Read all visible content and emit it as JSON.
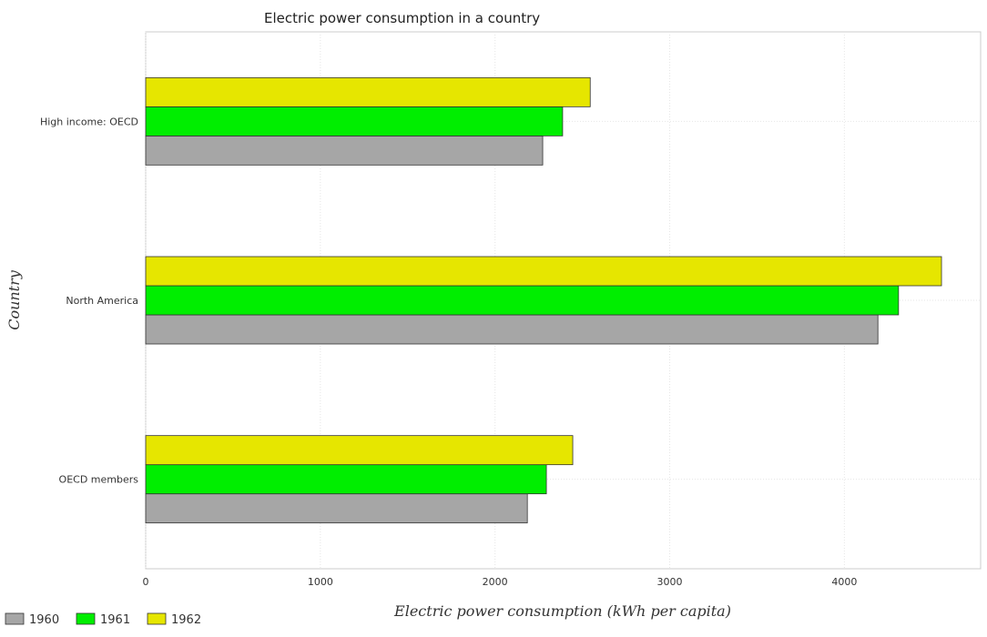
{
  "chart_data": {
    "type": "bar",
    "orientation": "horizontal",
    "title": "Electric power consumption in a country",
    "xlabel": "Electric power consumption (kWh per capita)",
    "ylabel": "Country",
    "categories": [
      "High income: OECD",
      "North America",
      "OECD members"
    ],
    "series": [
      {
        "name": "1960",
        "color": "#a6a6a6",
        "values": [
          2273,
          4192,
          2185
        ]
      },
      {
        "name": "1961",
        "color": "#00ee00",
        "values": [
          2387,
          4310,
          2294
        ]
      },
      {
        "name": "1962",
        "color": "#e6e600",
        "values": [
          2545,
          4556,
          2445
        ]
      }
    ],
    "xlim": [
      0,
      4780
    ],
    "xticks": [
      0,
      1000,
      2000,
      3000,
      4000
    ],
    "xtick_labels": [
      "0",
      "1000",
      "2000",
      "3000",
      "4000"
    ],
    "grid": true,
    "legend_position": "bottom-left"
  }
}
